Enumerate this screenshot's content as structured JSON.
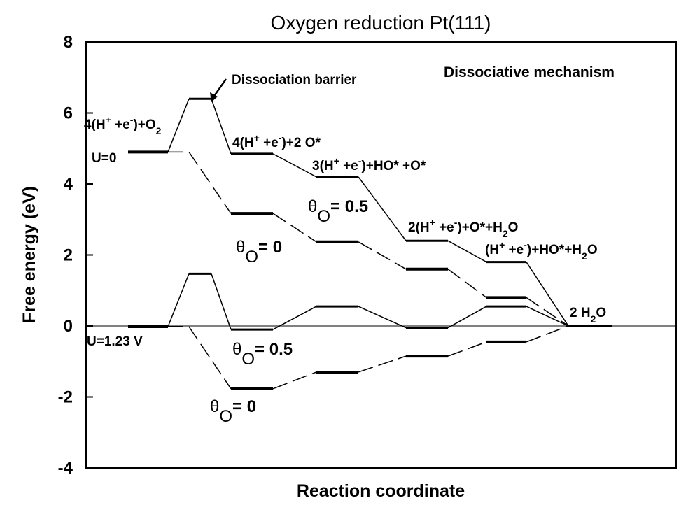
{
  "chart_data": {
    "type": "line",
    "title": "Oxygen reduction Pt(111)",
    "xlabel": "Reaction coordinate",
    "ylabel": "Free energy (eV)",
    "ylim": [
      -4,
      8
    ],
    "yticks": [
      "-4",
      "-2",
      "0",
      "2",
      "4",
      "6",
      "8"
    ],
    "step_labels": [
      {
        "id": "s0",
        "text": "4(H+ +e-)+O2"
      },
      {
        "id": "s2",
        "text": "4(H+ +e-)+2 O*"
      },
      {
        "id": "s3",
        "text": "3(H+ +e-)+HO* +O*"
      },
      {
        "id": "s4",
        "text": "2(H+ +e-)+O*+H2O"
      },
      {
        "id": "s5",
        "text": "(H+ +e-)+HO*+H2O"
      },
      {
        "id": "s6",
        "text": "2 H2O"
      }
    ],
    "annotations": {
      "dissociation_barrier": "Dissociation barrier",
      "mechanism": "Dissociative mechanism",
      "u0": "U=0",
      "u123": "U=1.23 V",
      "theta_symbol": "θ",
      "theta_sub": "O",
      "theta_05": "= 0.5",
      "theta_0": "= 0"
    },
    "series": [
      {
        "potential": "U=0",
        "coverage": "0.5",
        "style": "solid",
        "levels": [
          [
            0,
            4.9
          ],
          [
            1,
            6.4
          ],
          [
            2,
            4.85
          ],
          [
            3,
            4.2
          ],
          [
            4,
            2.4
          ],
          [
            5,
            1.8
          ],
          [
            6,
            0.0
          ]
        ]
      },
      {
        "potential": "U=0",
        "coverage": "0",
        "style": "dashed",
        "levels": [
          [
            0,
            4.9
          ],
          [
            1,
            4.9
          ],
          [
            2,
            3.17
          ],
          [
            3,
            2.37
          ],
          [
            4,
            1.6
          ],
          [
            5,
            0.8
          ],
          [
            6,
            0.0
          ]
        ]
      },
      {
        "potential": "U=1.23 V",
        "coverage": "0.5",
        "style": "solid",
        "levels": [
          [
            0,
            -0.02
          ],
          [
            1,
            1.47
          ],
          [
            2,
            -0.1
          ],
          [
            3,
            0.55
          ],
          [
            4,
            -0.05
          ],
          [
            5,
            0.55
          ],
          [
            6,
            0.0
          ]
        ]
      },
      {
        "potential": "U=1.23 V",
        "coverage": "0",
        "style": "dashed",
        "levels": [
          [
            0,
            -0.02
          ],
          [
            1,
            -0.02
          ],
          [
            2,
            -1.77
          ],
          [
            3,
            -1.3
          ],
          [
            4,
            -0.85
          ],
          [
            5,
            -0.45
          ],
          [
            6,
            0.0
          ]
        ]
      }
    ]
  }
}
